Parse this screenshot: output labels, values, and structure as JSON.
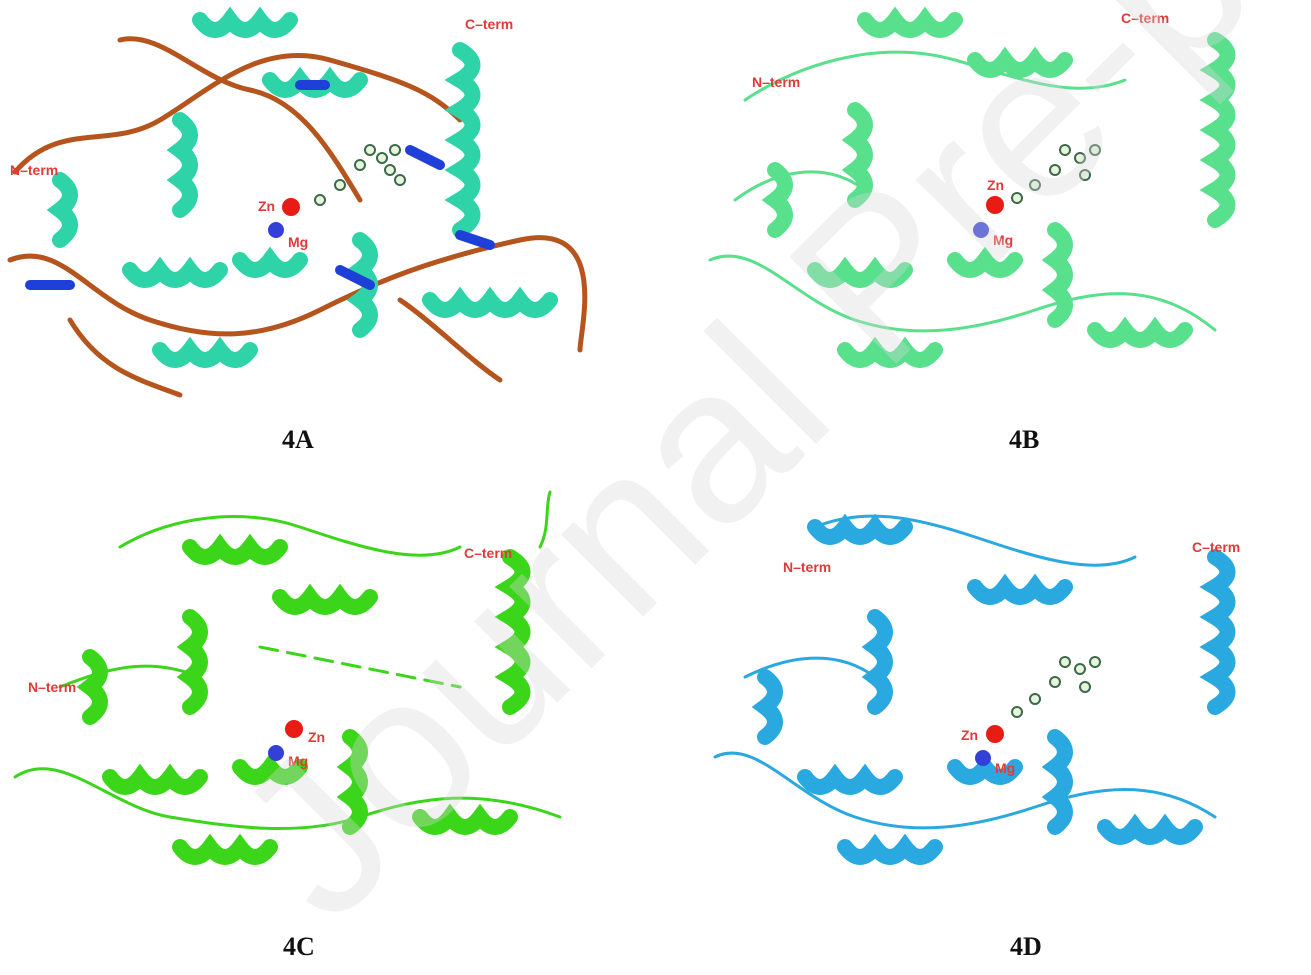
{
  "panels": [
    {
      "id": "4A",
      "caption": "4A",
      "n_term": "N–term",
      "c_term": "C–term",
      "zn": "Zn",
      "mg": "Mg",
      "helix_color": "#2fd3a8",
      "loop_color": "#b5541c",
      "accent_color": "#1e3fd8"
    },
    {
      "id": "4B",
      "caption": "4B",
      "n_term": "N–term",
      "c_term": "C–term",
      "zn": "Zn",
      "mg": "Mg",
      "helix_color": "#58e08c"
    },
    {
      "id": "4C",
      "caption": "4C",
      "n_term": "N–term",
      "c_term": "C–term",
      "zn": "Zn",
      "mg": "Mg",
      "helix_color": "#3bd61a"
    },
    {
      "id": "4D",
      "caption": "4D",
      "n_term": "N–term",
      "c_term": "C–term",
      "zn": "Zn",
      "mg": "Mg",
      "helix_color": "#2aa8e0"
    }
  ],
  "label_color": "#e03a3a",
  "zn_color": "#e81c14",
  "mg_color": "#3340d8",
  "watermark_text": "Journal Pre-proof"
}
